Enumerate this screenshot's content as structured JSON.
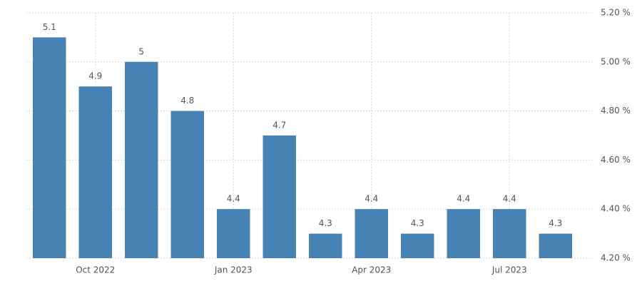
{
  "chart_data": {
    "type": "bar",
    "categories": [
      null,
      "Oct 2022",
      null,
      null,
      "Jan 2023",
      null,
      null,
      "Apr 2023",
      null,
      null,
      "Jul 2023",
      null
    ],
    "values": [
      5.1,
      4.9,
      5,
      4.8,
      4.4,
      4.7,
      4.3,
      4.4,
      4.3,
      4.4,
      4.4,
      4.3
    ],
    "color": "#4682b4",
    "ylim": [
      4.2,
      5.2
    ],
    "yticks": [
      {
        "value": 4.2,
        "label": "4.20 %"
      },
      {
        "value": 4.4,
        "label": "4.40 %"
      },
      {
        "value": 4.6,
        "label": "4.60 %"
      },
      {
        "value": 4.8,
        "label": "4.80 %"
      },
      {
        "value": 5.0,
        "label": "5.00 %"
      },
      {
        "value": 5.2,
        "label": "5.20 %"
      }
    ],
    "grid": true,
    "y_axis_side": "right"
  }
}
